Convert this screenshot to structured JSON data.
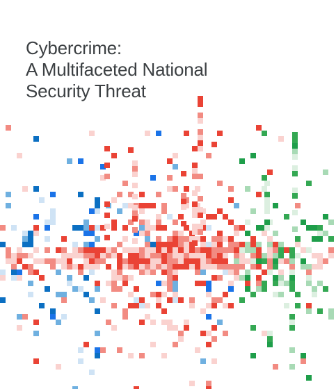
{
  "cover": {
    "title_lines": [
      "Cybercrime:",
      "A Multifaceted National",
      "Security Threat"
    ]
  },
  "palette": {
    "red": [
      "#ea4335",
      "#f28b82",
      "#fad2cf"
    ],
    "blue": [
      "#1a73e8",
      "#0b6fc2",
      "#6fb0e0",
      "#cfe3f5"
    ],
    "green": [
      "#1e9e4a",
      "#34a853",
      "#a8dab5",
      "#dcefe0"
    ]
  }
}
